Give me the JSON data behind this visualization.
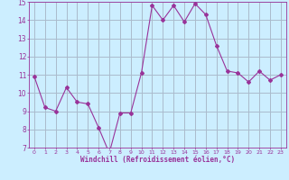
{
  "x": [
    0,
    1,
    2,
    3,
    4,
    5,
    6,
    7,
    8,
    9,
    10,
    11,
    12,
    13,
    14,
    15,
    16,
    17,
    18,
    19,
    20,
    21,
    22,
    23
  ],
  "y": [
    10.9,
    9.2,
    9.0,
    10.3,
    9.5,
    9.4,
    8.1,
    6.7,
    8.9,
    8.9,
    11.1,
    14.8,
    14.0,
    14.8,
    13.9,
    14.9,
    14.3,
    12.6,
    11.2,
    11.1,
    10.6,
    11.2,
    10.7,
    11.0
  ],
  "line_color": "#993399",
  "marker": "D",
  "marker_size": 2,
  "bg_color": "#cceeff",
  "grid_color": "#aabbcc",
  "xlabel": "Windchill (Refroidissement éolien,°C)",
  "xlabel_color": "#993399",
  "tick_color": "#993399",
  "ylim": [
    7,
    15
  ],
  "xlim": [
    -0.5,
    23.5
  ],
  "yticks": [
    7,
    8,
    9,
    10,
    11,
    12,
    13,
    14,
    15
  ],
  "xticks": [
    0,
    1,
    2,
    3,
    4,
    5,
    6,
    7,
    8,
    9,
    10,
    11,
    12,
    13,
    14,
    15,
    16,
    17,
    18,
    19,
    20,
    21,
    22,
    23
  ]
}
